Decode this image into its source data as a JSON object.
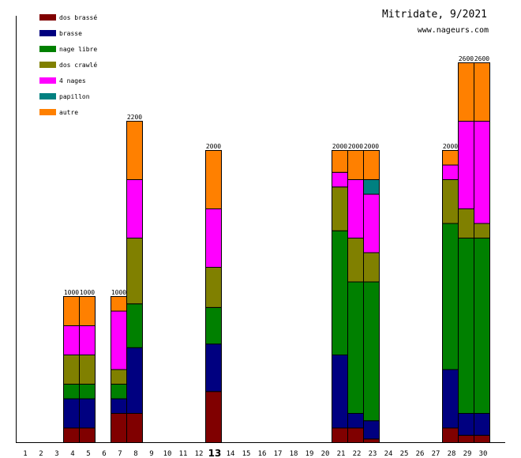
{
  "chart_data": {
    "type": "bar",
    "stacked": true,
    "title": "Mitridate, 9/2021",
    "subtitle": "www.nageurs.com",
    "xlabel": "",
    "ylabel": "",
    "ylim": [
      0,
      2900
    ],
    "grid": false,
    "legend_position": "top-left",
    "highlight_category": "13",
    "categories": [
      "1",
      "2",
      "3",
      "4",
      "5",
      "6",
      "7",
      "8",
      "9",
      "10",
      "11",
      "12",
      "13",
      "14",
      "15",
      "16",
      "17",
      "18",
      "19",
      "20",
      "21",
      "22",
      "23",
      "24",
      "25",
      "26",
      "27",
      "28",
      "29",
      "30"
    ],
    "series": [
      {
        "name": "dos brassé",
        "color": "#800000",
        "values": [
          0,
          0,
          0,
          100,
          100,
          0,
          200,
          200,
          0,
          0,
          0,
          0,
          350,
          0,
          0,
          0,
          0,
          0,
          0,
          0,
          100,
          100,
          25,
          0,
          0,
          0,
          0,
          100,
          50,
          50
        ]
      },
      {
        "name": "brasse",
        "color": "#000080",
        "values": [
          0,
          0,
          0,
          200,
          200,
          0,
          100,
          450,
          0,
          0,
          0,
          0,
          325,
          0,
          0,
          0,
          0,
          0,
          0,
          0,
          500,
          100,
          125,
          0,
          0,
          0,
          0,
          400,
          150,
          150
        ]
      },
      {
        "name": "nage libre",
        "color": "#008000",
        "values": [
          0,
          0,
          0,
          100,
          100,
          0,
          100,
          300,
          0,
          0,
          0,
          0,
          250,
          0,
          0,
          0,
          0,
          0,
          0,
          0,
          850,
          900,
          950,
          0,
          0,
          0,
          0,
          1000,
          1200,
          1200
        ]
      },
      {
        "name": "dos crawlé",
        "color": "#808000",
        "values": [
          0,
          0,
          0,
          200,
          200,
          0,
          100,
          450,
          0,
          0,
          0,
          0,
          275,
          0,
          0,
          0,
          0,
          0,
          0,
          0,
          300,
          300,
          200,
          0,
          0,
          0,
          0,
          300,
          200,
          100
        ]
      },
      {
        "name": "4 nages",
        "color": "#ff00ff",
        "values": [
          0,
          0,
          0,
          200,
          200,
          0,
          400,
          400,
          0,
          0,
          0,
          0,
          400,
          0,
          0,
          0,
          0,
          0,
          0,
          0,
          100,
          400,
          400,
          0,
          0,
          0,
          0,
          100,
          600,
          700
        ]
      },
      {
        "name": "papillon",
        "color": "#008080",
        "values": [
          0,
          0,
          0,
          0,
          0,
          0,
          0,
          0,
          0,
          0,
          0,
          0,
          0,
          0,
          0,
          0,
          0,
          0,
          0,
          0,
          0,
          0,
          100,
          0,
          0,
          0,
          0,
          0,
          0,
          0
        ]
      },
      {
        "name": "autre",
        "color": "#ff8000",
        "values": [
          0,
          0,
          0,
          200,
          200,
          0,
          100,
          400,
          0,
          0,
          0,
          0,
          400,
          0,
          0,
          0,
          0,
          0,
          0,
          0,
          150,
          200,
          200,
          0,
          0,
          0,
          0,
          100,
          400,
          400
        ]
      }
    ],
    "totals": [
      "",
      "",
      "",
      "1000",
      "1000",
      "",
      "1000",
      "2200",
      "",
      "",
      "",
      "",
      "2000",
      "",
      "",
      "",
      "",
      "",
      "",
      "",
      "2000",
      "2000",
      "2000",
      "",
      "",
      "",
      "",
      "2000",
      "2600",
      "2600"
    ]
  }
}
